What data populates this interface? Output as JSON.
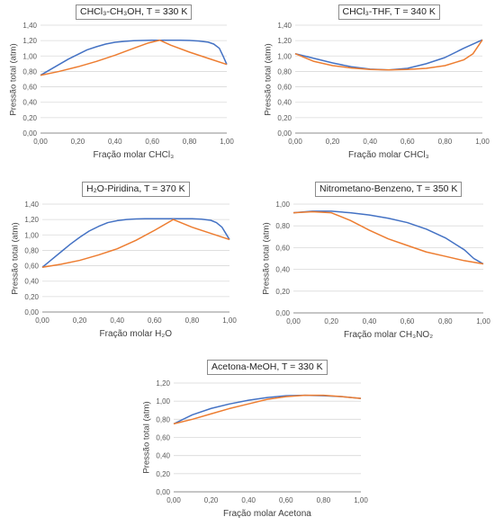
{
  "colors": {
    "blue": "#4472C4",
    "orange": "#ED7D31",
    "grid": "#d9d9d9",
    "axis": "#8c8c8c",
    "text": "#595959"
  },
  "chart_data": [
    {
      "type": "line",
      "title": "CHCl₃-CH₃OH, T = 330 K",
      "xlabel": "Fração molar CHCl₃",
      "ylabel": "Pressão total (atm)",
      "xlim": [
        0,
        1
      ],
      "ylim": [
        0,
        1.4
      ],
      "xticks": [
        "0,00",
        "0,20",
        "0,40",
        "0,60",
        "0,80",
        "1,00"
      ],
      "yticks": [
        "0,00",
        "0,20",
        "0,40",
        "0,60",
        "0,80",
        "1,00",
        "1,20",
        "1,40"
      ],
      "grid": true,
      "series": [
        {
          "color": "blue",
          "x": [
            0,
            0.05,
            0.1,
            0.15,
            0.2,
            0.25,
            0.3,
            0.35,
            0.4,
            0.45,
            0.5,
            0.55,
            0.6,
            0.65,
            0.7,
            0.75,
            0.8,
            0.85,
            0.9,
            0.93,
            0.96,
            0.98,
            1.0
          ],
          "y": [
            0.75,
            0.82,
            0.89,
            0.96,
            1.02,
            1.08,
            1.12,
            1.155,
            1.178,
            1.19,
            1.198,
            1.202,
            1.205,
            1.205,
            1.205,
            1.204,
            1.202,
            1.195,
            1.18,
            1.155,
            1.1,
            1.0,
            0.89
          ]
        },
        {
          "color": "orange",
          "x": [
            0,
            0.1,
            0.2,
            0.3,
            0.4,
            0.5,
            0.58,
            0.64,
            0.7,
            0.8,
            0.9,
            1.0
          ],
          "y": [
            0.75,
            0.8,
            0.86,
            0.93,
            1.01,
            1.1,
            1.17,
            1.205,
            1.14,
            1.05,
            0.97,
            0.89
          ]
        }
      ]
    },
    {
      "type": "line",
      "title": "CHCl₃-THF, T = 340 K",
      "xlabel": "Fração molar CHCl₃",
      "ylabel": "Pressão total (atm)",
      "xlim": [
        0,
        1
      ],
      "ylim": [
        0,
        1.4
      ],
      "xticks": [
        "0,00",
        "0,20",
        "0,40",
        "0,60",
        "0,80",
        "1,00"
      ],
      "yticks": [
        "0,00",
        "0,20",
        "0,40",
        "0,60",
        "0,80",
        "1,00",
        "1,20",
        "1,40"
      ],
      "grid": true,
      "series": [
        {
          "color": "blue",
          "x": [
            0,
            0.1,
            0.2,
            0.3,
            0.4,
            0.5,
            0.6,
            0.7,
            0.8,
            0.9,
            1.0
          ],
          "y": [
            1.03,
            0.97,
            0.91,
            0.86,
            0.83,
            0.82,
            0.84,
            0.9,
            0.98,
            1.1,
            1.21
          ]
        },
        {
          "color": "orange",
          "x": [
            0,
            0.1,
            0.2,
            0.3,
            0.4,
            0.5,
            0.6,
            0.7,
            0.8,
            0.9,
            0.95,
            1.0
          ],
          "y": [
            1.03,
            0.93,
            0.875,
            0.845,
            0.825,
            0.82,
            0.825,
            0.84,
            0.875,
            0.95,
            1.03,
            1.21
          ]
        }
      ]
    },
    {
      "type": "line",
      "title": "H₂O-Piridina, T = 370 K",
      "xlabel": "Fração molar H₂O",
      "ylabel": "Pressão total (atm)",
      "xlim": [
        0,
        1
      ],
      "ylim": [
        0,
        1.4
      ],
      "xticks": [
        "0,00",
        "0,20",
        "0,40",
        "0,60",
        "0,80",
        "1,00"
      ],
      "yticks": [
        "0,00",
        "0,20",
        "0,40",
        "0,60",
        "0,80",
        "1,00",
        "1,20",
        "1,40"
      ],
      "grid": true,
      "series": [
        {
          "color": "blue",
          "x": [
            0,
            0.05,
            0.1,
            0.15,
            0.2,
            0.25,
            0.3,
            0.35,
            0.4,
            0.45,
            0.5,
            0.55,
            0.6,
            0.65,
            0.7,
            0.75,
            0.8,
            0.85,
            0.9,
            0.93,
            0.96,
            0.98,
            1.0
          ],
          "y": [
            0.58,
            0.68,
            0.78,
            0.88,
            0.97,
            1.05,
            1.11,
            1.16,
            1.185,
            1.2,
            1.208,
            1.21,
            1.21,
            1.21,
            1.21,
            1.21,
            1.21,
            1.205,
            1.19,
            1.16,
            1.1,
            1.02,
            0.94
          ]
        },
        {
          "color": "orange",
          "x": [
            0,
            0.1,
            0.2,
            0.3,
            0.4,
            0.5,
            0.6,
            0.7,
            0.8,
            0.9,
            1.0
          ],
          "y": [
            0.58,
            0.62,
            0.67,
            0.74,
            0.82,
            0.93,
            1.06,
            1.2,
            1.1,
            1.02,
            0.94
          ]
        }
      ]
    },
    {
      "type": "line",
      "title": "Nitrometano-Benzeno, T = 350 K",
      "xlabel": "Fração molar CH₃NO₂",
      "ylabel": "Pressão total (atm)",
      "xlim": [
        0,
        1
      ],
      "ylim": [
        0,
        1.0
      ],
      "xticks": [
        "0,00",
        "0,20",
        "0,40",
        "0,60",
        "0,80",
        "1,00"
      ],
      "yticks": [
        "0,00",
        "0,20",
        "0,40",
        "0,60",
        "0,80",
        "1,00"
      ],
      "grid": true,
      "series": [
        {
          "color": "blue",
          "x": [
            0,
            0.1,
            0.2,
            0.3,
            0.4,
            0.5,
            0.6,
            0.7,
            0.8,
            0.9,
            0.95,
            1.0
          ],
          "y": [
            0.92,
            0.935,
            0.935,
            0.92,
            0.9,
            0.87,
            0.83,
            0.77,
            0.69,
            0.58,
            0.5,
            0.45
          ]
        },
        {
          "color": "orange",
          "x": [
            0,
            0.1,
            0.2,
            0.3,
            0.4,
            0.5,
            0.6,
            0.7,
            0.8,
            0.9,
            1.0
          ],
          "y": [
            0.92,
            0.93,
            0.92,
            0.85,
            0.76,
            0.68,
            0.62,
            0.56,
            0.52,
            0.48,
            0.45
          ]
        }
      ]
    },
    {
      "type": "line",
      "title": "Acetona-MeOH, T = 330 K",
      "xlabel": "Fração molar Acetona",
      "ylabel": "Pressão total (atm)",
      "xlim": [
        0,
        1
      ],
      "ylim": [
        0,
        1.2
      ],
      "xticks": [
        "0,00",
        "0,20",
        "0,40",
        "0,60",
        "0,80",
        "1,00"
      ],
      "yticks": [
        "0,00",
        "0,20",
        "0,40",
        "0,60",
        "0,80",
        "1,00",
        "1,20"
      ],
      "grid": true,
      "series": [
        {
          "color": "blue",
          "x": [
            0,
            0.1,
            0.2,
            0.3,
            0.4,
            0.5,
            0.6,
            0.7,
            0.8,
            0.9,
            1.0
          ],
          "y": [
            0.75,
            0.85,
            0.92,
            0.97,
            1.01,
            1.04,
            1.06,
            1.065,
            1.06,
            1.05,
            1.03
          ]
        },
        {
          "color": "orange",
          "x": [
            0,
            0.1,
            0.2,
            0.3,
            0.4,
            0.5,
            0.6,
            0.7,
            0.8,
            0.9,
            1.0
          ],
          "y": [
            0.75,
            0.8,
            0.86,
            0.92,
            0.97,
            1.02,
            1.05,
            1.065,
            1.065,
            1.05,
            1.03
          ]
        }
      ]
    }
  ]
}
